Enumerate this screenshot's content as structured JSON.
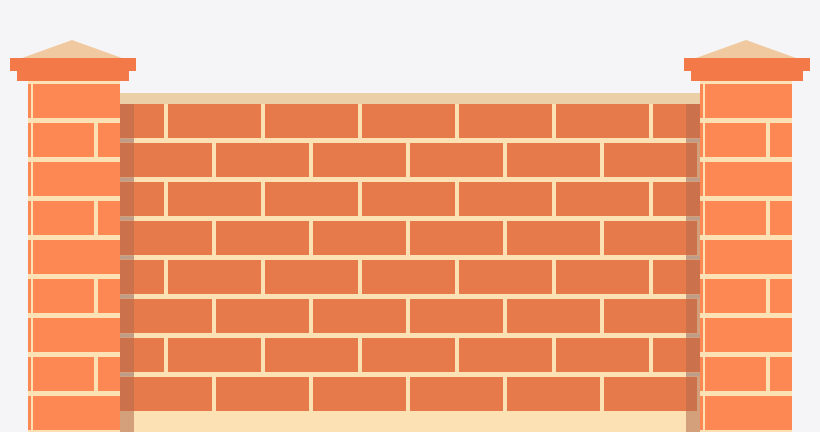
{
  "scene": {
    "subject": "brick-wall-with-pillars",
    "colors": {
      "background": "#f5f5f7",
      "wall_brick": "#e67a4b",
      "pillar_brick": "#fd8854",
      "mortar": "#fbe1b3",
      "coping": "#ebcfa7",
      "pillar_cap_base": "#f47949",
      "pillar_cap_roof": "#f0c9a0",
      "wall_edge_shadow": "#b46c4e",
      "mortar_highlight": "#c9d9d3"
    },
    "wall": {
      "brick_courses": 8
    },
    "pillars": [
      {
        "id": "left",
        "brick_courses": 9
      },
      {
        "id": "right",
        "brick_courses": 9
      }
    ]
  }
}
